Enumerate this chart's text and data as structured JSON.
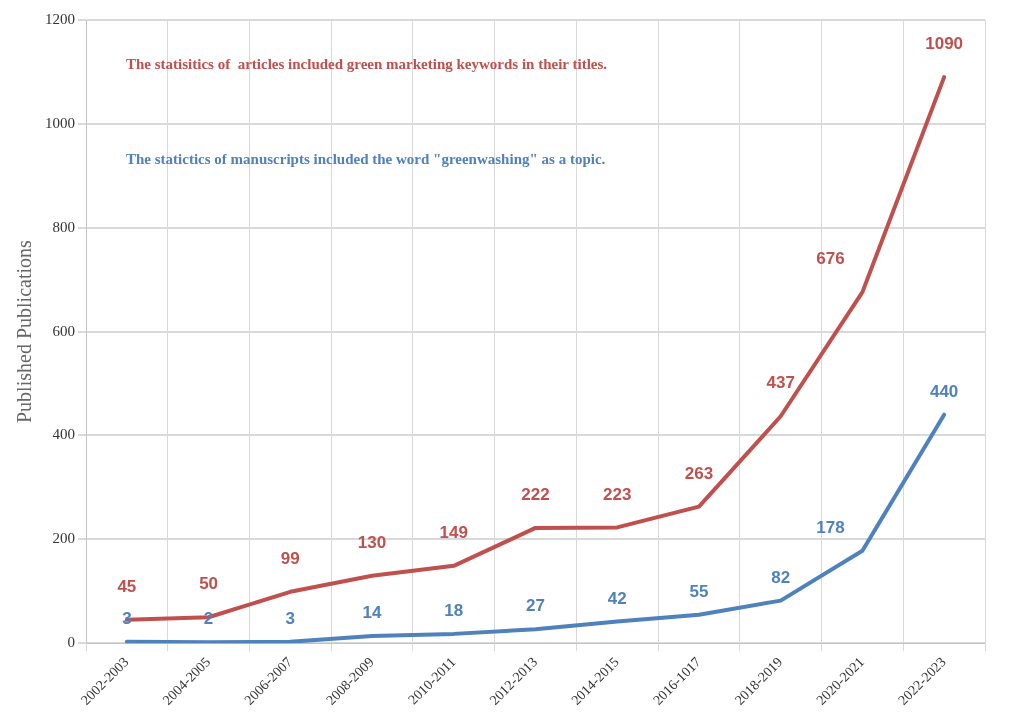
{
  "chart_data": {
    "type": "line",
    "ylabel": "Published Publications",
    "categories": [
      "2002-2003",
      "2004-2005",
      "2006-2007",
      "2008-2009",
      "2010-2011",
      "2012-2013",
      "2014-2015",
      "2016-1017",
      "2018-2019",
      "2020-2021",
      "2022-2023"
    ],
    "series": [
      {
        "name": "The statisitics of  articles included green marketing keywords in their titles.",
        "color": "#c0504d",
        "values": [
          45,
          50,
          99,
          130,
          149,
          222,
          223,
          263,
          437,
          676,
          1090
        ]
      },
      {
        "name": "The statictics of manuscripts included the word \"greenwashing\" as a topic.",
        "color": "#4f81bd",
        "values": [
          3,
          2,
          3,
          14,
          18,
          27,
          42,
          55,
          82,
          178,
          440
        ]
      }
    ],
    "ylim": [
      0,
      1200
    ],
    "yticks": [
      0,
      200,
      400,
      600,
      800,
      1000,
      1200
    ],
    "grid": true,
    "legend": "top left",
    "marker": "none",
    "line_style": "solid",
    "data_labels": true
  }
}
